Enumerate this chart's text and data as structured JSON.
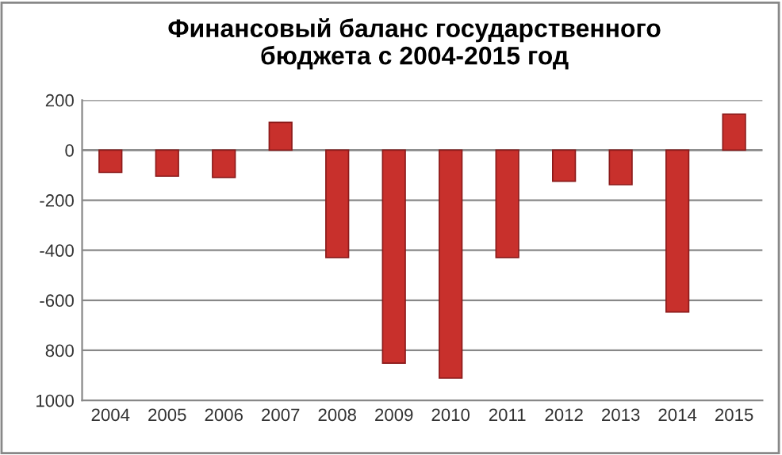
{
  "chart_data": {
    "type": "bar",
    "title": "Финансовый баланс государственного\nбюджета с 2004-2015 год",
    "categories": [
      "2004",
      "2005",
      "2006",
      "2007",
      "2008",
      "2009",
      "2010",
      "2011",
      "2012",
      "2013",
      "2014",
      "2015"
    ],
    "values": [
      -89,
      -104,
      -109,
      111,
      -429,
      -851,
      -911,
      -429,
      -124,
      -138,
      -647,
      144
    ],
    "color": "#c8302c",
    "ylim": [
      -1000,
      200
    ],
    "yticks": [
      200,
      0,
      -200,
      -400,
      -600,
      {
        "value": -800,
        "label": "800"
      },
      {
        "value": -1000,
        "label": "1000"
      }
    ],
    "grid": "y"
  }
}
